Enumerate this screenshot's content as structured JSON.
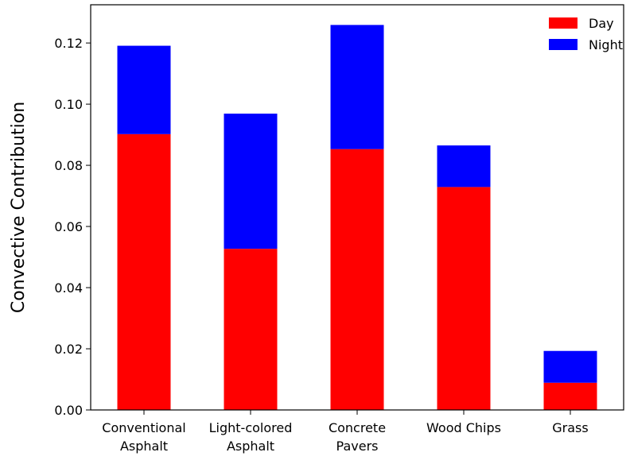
{
  "chart_data": {
    "type": "bar",
    "stacked": true,
    "categories": [
      [
        "Conventional",
        "Asphalt"
      ],
      [
        "Light-colored",
        "Asphalt"
      ],
      [
        "Concrete",
        "Pavers"
      ],
      [
        "Wood Chips"
      ],
      [
        "Grass"
      ]
    ],
    "series": [
      {
        "name": "Day",
        "color": "#ff0000",
        "values": [
          0.0902,
          0.0527,
          0.0853,
          0.0729,
          0.0089
        ]
      },
      {
        "name": "Night",
        "color": "#0000ff",
        "values": [
          0.0289,
          0.0442,
          0.0406,
          0.0136,
          0.0104
        ]
      }
    ],
    "title": "",
    "xlabel": "",
    "ylabel": "Convective Contribution",
    "ylim": [
      0,
      0.1325
    ],
    "yticks": [
      "0.00",
      "0.02",
      "0.04",
      "0.06",
      "0.08",
      "0.10",
      "0.12"
    ],
    "grid": false,
    "legend_position": "top-right"
  }
}
